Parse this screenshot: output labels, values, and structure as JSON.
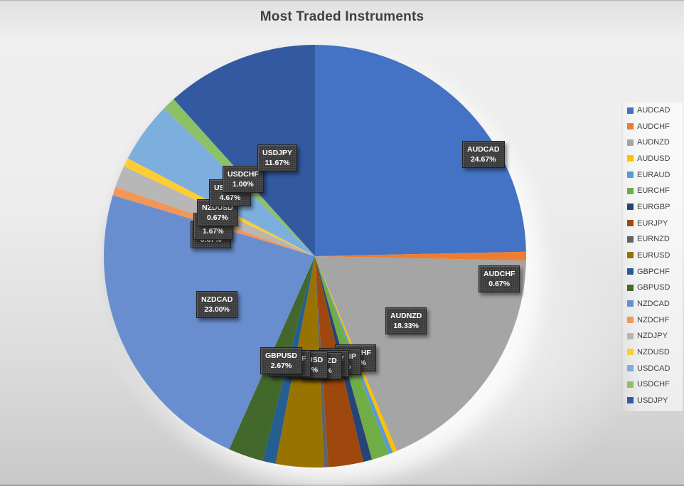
{
  "title": "Most Traded Instruments",
  "title_color": "#3f3f3f",
  "chart_data": {
    "type": "pie",
    "title": "Most Traded Instruments",
    "unit": "percent",
    "direction": "clockwise",
    "start_angle_deg": 0,
    "legend_position": "right",
    "data_label_style": "dark patterned callout boxes, category name + percent",
    "categories": [
      "AUDCAD",
      "AUDCHF",
      "AUDNZD",
      "AUDUSD",
      "EURAUD",
      "EURCHF",
      "EURGBP",
      "EURJPY",
      "EURNZD",
      "EURUSD",
      "GBPCHF",
      "GBPUSD",
      "NZDCAD",
      "NZDCHF",
      "NZDJPY",
      "NZDUSD",
      "USDCAD",
      "USDCHF",
      "USDJPY"
    ],
    "values": [
      24.67,
      0.67,
      18.33,
      0.33,
      0.33,
      1.33,
      0.67,
      2.67,
      0.33,
      3.67,
      1.0,
      2.67,
      23.0,
      0.67,
      1.67,
      0.67,
      4.67,
      1.0,
      11.67
    ],
    "colors": [
      "#4472C4",
      "#ED7D31",
      "#A5A5A5",
      "#FFC000",
      "#5B9BD5",
      "#70AD47",
      "#264478",
      "#9E480E",
      "#636363",
      "#997300",
      "#255E91",
      "#43682B",
      "#698ED0",
      "#F1975A",
      "#B7B7B7",
      "#FFCD33",
      "#7CAFDD",
      "#8CC168",
      "#335AA1"
    ]
  },
  "legend": {
    "items": [
      {
        "label": "AUDCAD",
        "color": "#4472C4"
      },
      {
        "label": "AUDCHF",
        "color": "#ED7D31"
      },
      {
        "label": "AUDNZD",
        "color": "#A5A5A5"
      },
      {
        "label": "AUDUSD",
        "color": "#FFC000"
      },
      {
        "label": "EURAUD",
        "color": "#5B9BD5"
      },
      {
        "label": "EURCHF",
        "color": "#70AD47"
      },
      {
        "label": "EURGBP",
        "color": "#264478"
      },
      {
        "label": "EURJPY",
        "color": "#9E480E"
      },
      {
        "label": "EURNZD",
        "color": "#636363"
      },
      {
        "label": "EURUSD",
        "color": "#997300"
      },
      {
        "label": "GBPCHF",
        "color": "#255E91"
      },
      {
        "label": "GBPUSD",
        "color": "#43682B"
      },
      {
        "label": "NZDCAD",
        "color": "#698ED0"
      },
      {
        "label": "NZDCHF",
        "color": "#F1975A"
      },
      {
        "label": "NZDJPY",
        "color": "#B7B7B7"
      },
      {
        "label": "NZDUSD",
        "color": "#FFCD33"
      },
      {
        "label": "USDCAD",
        "color": "#7CAFDD"
      },
      {
        "label": "USDCHF",
        "color": "#8CC168"
      },
      {
        "label": "USDJPY",
        "color": "#335AA1"
      }
    ]
  },
  "chart_labels": [
    {
      "id": "AUDCAD",
      "line1": "AUDCAD",
      "line2": "24.67%"
    },
    {
      "id": "AUDCHF",
      "line1": "AUDCHF",
      "line2": "0.67%"
    },
    {
      "id": "AUDNZD",
      "line1": "AUDNZD",
      "line2": "18.33%"
    },
    {
      "id": "NZDCAD",
      "line1": "NZDCAD",
      "line2": "23.00%"
    },
    {
      "id": "USDJPY",
      "line1": "USDJPY",
      "line2": "11.67%"
    },
    {
      "id": "USDCHF",
      "line1": "USDCHF",
      "line2": "1.00%"
    },
    {
      "id": "USDCAD",
      "line1": "USDCAD",
      "line2": "4.67%"
    },
    {
      "id": "NZDUSD",
      "line1": "NZDUSD",
      "line2": "0.67%"
    },
    {
      "id": "NZDJPY",
      "line1": "NZDJPY",
      "line2": "1.67%"
    },
    {
      "id": "NZDCHF",
      "line1": "NZDCHF",
      "line2": "0.67%"
    },
    {
      "id": "GBPUSD",
      "line1": "GBPUSD",
      "line2": "2.67%"
    },
    {
      "id": "GBPCHF",
      "line1": "GBPCHF",
      "line2": "1.00%"
    },
    {
      "id": "EURUSD",
      "line1": "EURUSD",
      "line2": "3.67%"
    },
    {
      "id": "EURNZD",
      "line1": "EURNZD",
      "line2": "0.33%"
    },
    {
      "id": "EURJPY",
      "line1": "EURJPY",
      "line2": "2.67%"
    },
    {
      "id": "EURGBP",
      "line1": "EURGBP",
      "line2": "0.67%"
    },
    {
      "id": "EURCHF",
      "line1": "EURCHF",
      "line2": "1.33%"
    }
  ]
}
